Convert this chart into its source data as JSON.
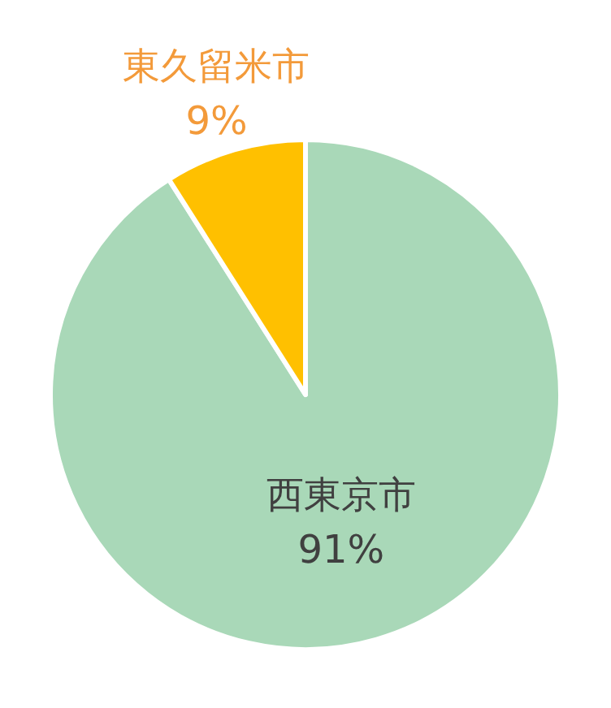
{
  "chart_data": {
    "type": "pie",
    "categories": [
      "西東京市",
      "東久留米市"
    ],
    "values": [
      91,
      9
    ],
    "colors": [
      "#a9d8b8",
      "#ffc000"
    ],
    "value_labels": [
      "91%",
      "9%"
    ]
  }
}
